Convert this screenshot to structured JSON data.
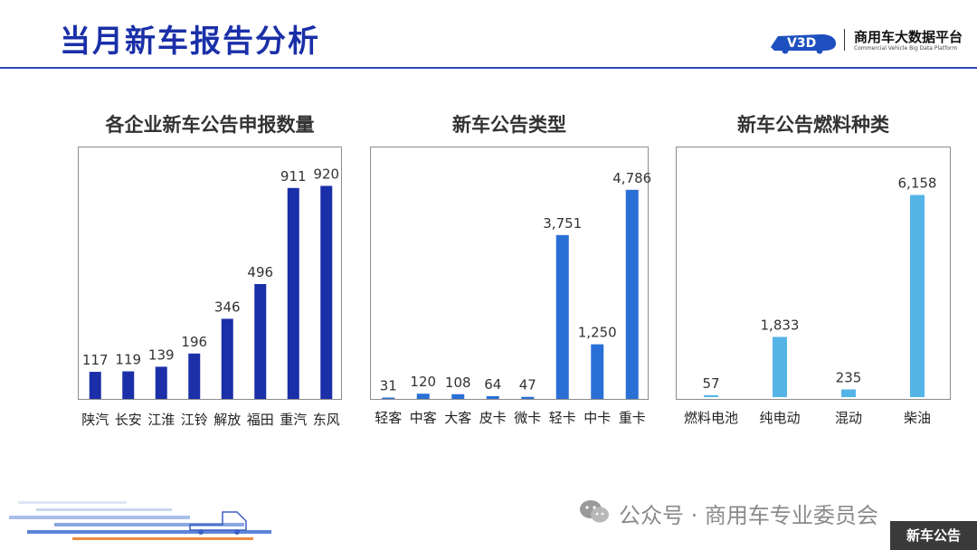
{
  "header": {
    "title": "当月新车报告分析",
    "logo_mark": "V3D",
    "logo_cn": "商用车大数据平台",
    "logo_en": "Commercial Vehicle Big Data Platform"
  },
  "colors": {
    "title": "#1a2fa8",
    "chart1_bar": "#1a2fa8",
    "chart2_bar": "#2a6fd6",
    "chart3_bar": "#55b4e6"
  },
  "chart_data": [
    {
      "type": "bar",
      "title": "各企业新车公告申报数量",
      "categories": [
        "陕汽",
        "长安",
        "江淮",
        "江铃",
        "解放",
        "福田",
        "重汽",
        "东风"
      ],
      "values": [
        117,
        119,
        139,
        196,
        346,
        496,
        911,
        920
      ],
      "data_labels": [
        "117",
        "119",
        "139",
        "196",
        "346",
        "496",
        "911",
        "920"
      ],
      "ylim": [
        0,
        1000
      ],
      "grid": false
    },
    {
      "type": "bar",
      "title": "新车公告类型",
      "categories": [
        "轻客",
        "中客",
        "大客",
        "皮卡",
        "微卡",
        "轻卡",
        "中卡",
        "重卡"
      ],
      "values": [
        31,
        120,
        108,
        64,
        47,
        3751,
        1250,
        4786
      ],
      "data_labels": [
        "31",
        "120",
        "108",
        "64",
        "47",
        "3,751",
        "1,250",
        "4,786"
      ],
      "ylim": [
        0,
        5300
      ],
      "grid": false
    },
    {
      "type": "bar",
      "title": "新车公告燃料种类",
      "categories": [
        "燃料电池",
        "纯电动",
        "混动",
        "柴油"
      ],
      "values": [
        57,
        1833,
        235,
        6158
      ],
      "data_labels": [
        "57",
        "1,833",
        "235",
        "6,158"
      ],
      "ylim": [
        0,
        7000
      ],
      "grid": false
    }
  ],
  "footer": {
    "wechat_text": "公众号 · 商用车专业委员会",
    "corner_tag": "新车公告"
  }
}
